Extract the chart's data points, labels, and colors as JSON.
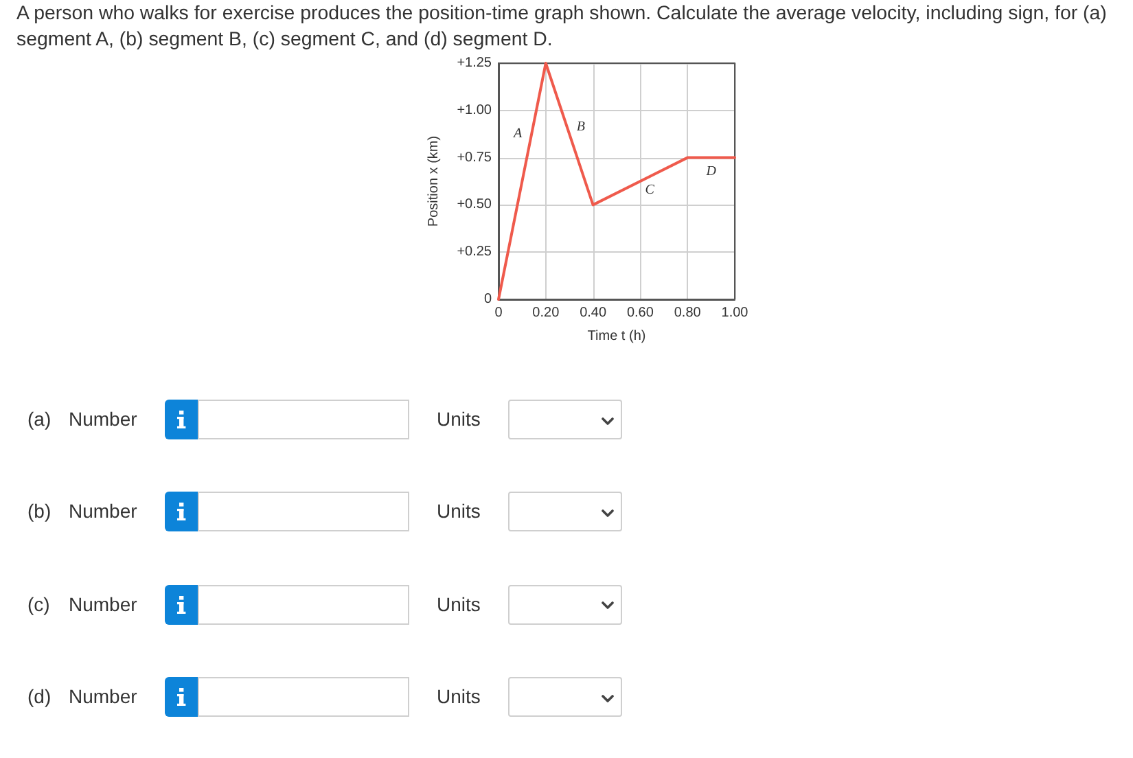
{
  "chart_data": {
    "type": "line",
    "title": "A person who walks for exercise produces the position-time graph shown. Calculate the average velocity, including sign, for (a) segment A, (b) segment B, (c) segment C, and (d) segment D.",
    "xlabel": "Time t (h)",
    "ylabel": "Position x (km)",
    "x": [
      0,
      0.2,
      0.4,
      0.8,
      1.0
    ],
    "series": [
      {
        "color": "#ef5a4c",
        "values": [
          0,
          1.25,
          0.5,
          0.75,
          0.75
        ]
      }
    ],
    "xlim": [
      0,
      1
    ],
    "ylim": [
      0,
      1.25
    ],
    "xticks": [
      0,
      {
        "value": 0.2,
        "label": "0.20"
      },
      {
        "value": 0.4,
        "label": "0.40"
      },
      {
        "value": 0.6,
        "label": "0.60"
      },
      {
        "value": 0.8,
        "label": "0.80"
      },
      {
        "value": 1,
        "label": "1.00"
      }
    ],
    "yticks": [
      0,
      {
        "value": 0.25,
        "label": "+0.25"
      },
      {
        "value": 0.5,
        "label": "+0.50"
      },
      {
        "value": 0.75,
        "label": "+0.75"
      },
      {
        "value": 1,
        "label": "+1.00"
      },
      {
        "value": 1.25,
        "label": "+1.25"
      }
    ],
    "grid": true,
    "marker": "none",
    "line_style": "solid",
    "annotations": [
      {
        "text": "A",
        "x": 0.14,
        "y": 0.875
      },
      {
        "text": "B",
        "x": 0.29,
        "y": 0.9125
      },
      {
        "text": "C",
        "x": 0.64,
        "y": 0.65
      },
      {
        "text": "D",
        "x": 0.9,
        "y": 0.75
      },
      "(a)",
      "Number",
      "Units",
      "(b)",
      "Number",
      "Units",
      "(c)",
      "Number",
      "Units",
      "(d)",
      "Number",
      "Units"
    ]
  }
}
